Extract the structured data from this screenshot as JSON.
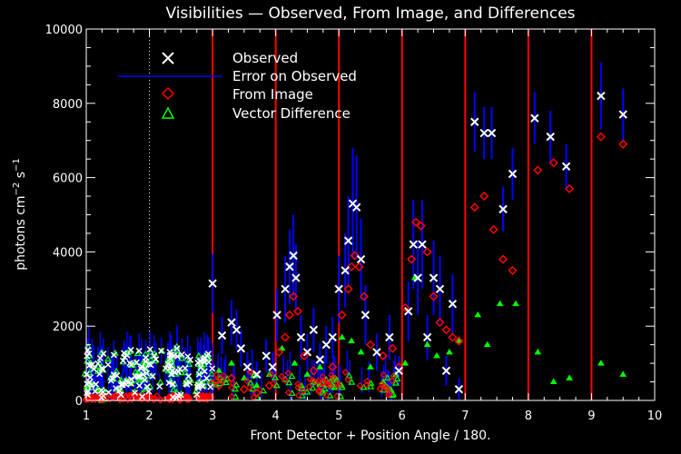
{
  "chart_data": {
    "type": "scatter",
    "title": "Visibilities — Observed, From Image, and Differences",
    "xlabel": "Front Detector + Position Angle / 180.",
    "ylabel_parts": [
      "photons cm",
      "−2",
      " s",
      "−1"
    ],
    "xlim": [
      1,
      10
    ],
    "ylim": [
      0,
      10000
    ],
    "x_ticks": [
      1,
      2,
      3,
      4,
      5,
      6,
      7,
      8,
      9,
      10
    ],
    "y_ticks": [
      0,
      2000,
      4000,
      6000,
      8000,
      10000
    ],
    "x_tick_labels": [
      "1",
      "2",
      "3",
      "4",
      "5",
      "6",
      "7",
      "8",
      "9",
      "10"
    ],
    "y_tick_labels": [
      "0",
      "2000",
      "4000",
      "6000",
      "8000",
      "10000"
    ],
    "dotted_line_x": 2,
    "detector_boundaries": [
      3,
      4,
      5,
      6,
      7,
      8,
      9
    ],
    "legend": [
      "Observed",
      "Error on Observed",
      "From Image",
      "Vector Difference"
    ],
    "legend_position": "top-left",
    "colors": {
      "background": "#000000",
      "axes": "#ffffff",
      "observed": "#ffffff",
      "error": "#0000ff",
      "image": "#ff0000",
      "difference": "#00ff00",
      "boundary": "#ff0000"
    },
    "series": [
      {
        "name": "Observed",
        "points": [
          [
            3.0,
            3150,
            800
          ],
          [
            3.15,
            1750,
            500
          ],
          [
            3.3,
            2100,
            600
          ],
          [
            3.38,
            1900,
            550
          ],
          [
            3.45,
            1400,
            500
          ],
          [
            3.55,
            900,
            400
          ],
          [
            3.7,
            700,
            350
          ],
          [
            3.85,
            1200,
            450
          ],
          [
            3.95,
            900,
            400
          ],
          [
            4.02,
            2300,
            700
          ],
          [
            4.15,
            3000,
            900
          ],
          [
            4.22,
            3600,
            1000
          ],
          [
            4.28,
            3900,
            1100
          ],
          [
            4.32,
            3300,
            900
          ],
          [
            4.4,
            1700,
            600
          ],
          [
            4.5,
            1300,
            500
          ],
          [
            4.6,
            1900,
            600
          ],
          [
            4.7,
            1100,
            450
          ],
          [
            4.8,
            1500,
            500
          ],
          [
            4.9,
            1700,
            550
          ],
          [
            5.0,
            3000,
            900
          ],
          [
            5.1,
            3500,
            1000
          ],
          [
            5.15,
            4300,
            1200
          ],
          [
            5.22,
            5300,
            1500
          ],
          [
            5.28,
            5200,
            1400
          ],
          [
            5.35,
            3800,
            1100
          ],
          [
            5.42,
            2300,
            800
          ],
          [
            5.6,
            1300,
            500
          ],
          [
            5.8,
            1700,
            600
          ],
          [
            5.95,
            800,
            400
          ],
          [
            6.1,
            2400,
            800
          ],
          [
            6.18,
            4200,
            1200
          ],
          [
            6.25,
            3300,
            1000
          ],
          [
            6.32,
            4200,
            1200
          ],
          [
            6.4,
            1700,
            600
          ],
          [
            6.5,
            3300,
            1000
          ],
          [
            6.6,
            3000,
            900
          ],
          [
            6.7,
            800,
            400
          ],
          [
            6.8,
            2600,
            800
          ],
          [
            6.9,
            300,
            300
          ],
          [
            7.15,
            7500,
            800
          ],
          [
            7.3,
            7200,
            700
          ],
          [
            7.42,
            7200,
            700
          ],
          [
            7.6,
            5150,
            600
          ],
          [
            7.75,
            6100,
            700
          ],
          [
            8.1,
            7600,
            700
          ],
          [
            8.35,
            7100,
            700
          ],
          [
            8.6,
            6300,
            600
          ],
          [
            9.15,
            8200,
            900
          ],
          [
            9.5,
            7700,
            700
          ]
        ]
      },
      {
        "name": "From Image",
        "points": [
          [
            3.1,
            400
          ],
          [
            3.3,
            600
          ],
          [
            3.5,
            300
          ],
          [
            3.7,
            200
          ],
          [
            3.9,
            400
          ],
          [
            4.05,
            1300
          ],
          [
            4.15,
            1700
          ],
          [
            4.22,
            2300
          ],
          [
            4.28,
            2800
          ],
          [
            4.35,
            2400
          ],
          [
            4.45,
            1200
          ],
          [
            4.6,
            800
          ],
          [
            4.75,
            500
          ],
          [
            4.9,
            900
          ],
          [
            5.05,
            2300
          ],
          [
            5.15,
            3000
          ],
          [
            5.2,
            3600
          ],
          [
            5.25,
            3900
          ],
          [
            5.32,
            3600
          ],
          [
            5.4,
            2800
          ],
          [
            5.5,
            1500
          ],
          [
            5.7,
            1200
          ],
          [
            5.85,
            1400
          ],
          [
            5.95,
            900
          ],
          [
            6.05,
            2500
          ],
          [
            6.15,
            3800
          ],
          [
            6.22,
            4800
          ],
          [
            6.3,
            4700
          ],
          [
            6.4,
            4000
          ],
          [
            6.5,
            2800
          ],
          [
            6.6,
            2100
          ],
          [
            6.7,
            1900
          ],
          [
            6.8,
            1700
          ],
          [
            6.9,
            1600
          ],
          [
            7.15,
            5200
          ],
          [
            7.3,
            5500
          ],
          [
            7.45,
            4600
          ],
          [
            7.6,
            3800
          ],
          [
            7.75,
            3500
          ],
          [
            8.15,
            6200
          ],
          [
            8.4,
            6400
          ],
          [
            8.65,
            5700
          ],
          [
            9.15,
            7100
          ],
          [
            9.5,
            6900
          ]
        ]
      },
      {
        "name": "Vector Difference",
        "points": [
          [
            3.1,
            800
          ],
          [
            3.3,
            1000
          ],
          [
            3.5,
            600
          ],
          [
            3.7,
            400
          ],
          [
            3.9,
            700
          ],
          [
            4.1,
            1400
          ],
          [
            4.3,
            1000
          ],
          [
            4.5,
            700
          ],
          [
            4.7,
            900
          ],
          [
            4.9,
            600
          ],
          [
            5.05,
            1700
          ],
          [
            5.2,
            1600
          ],
          [
            5.35,
            1300
          ],
          [
            5.5,
            900
          ],
          [
            5.7,
            500
          ],
          [
            5.9,
            700
          ],
          [
            6.05,
            1000
          ],
          [
            6.2,
            3300
          ],
          [
            6.4,
            1500
          ],
          [
            6.55,
            1200
          ],
          [
            6.75,
            1300
          ],
          [
            6.9,
            1600
          ],
          [
            7.2,
            2300
          ],
          [
            7.35,
            1500
          ],
          [
            7.55,
            2600
          ],
          [
            7.8,
            2600
          ],
          [
            8.15,
            1300
          ],
          [
            8.4,
            500
          ],
          [
            8.65,
            600
          ],
          [
            9.15,
            1000
          ],
          [
            9.5,
            700
          ]
        ]
      }
    ]
  }
}
